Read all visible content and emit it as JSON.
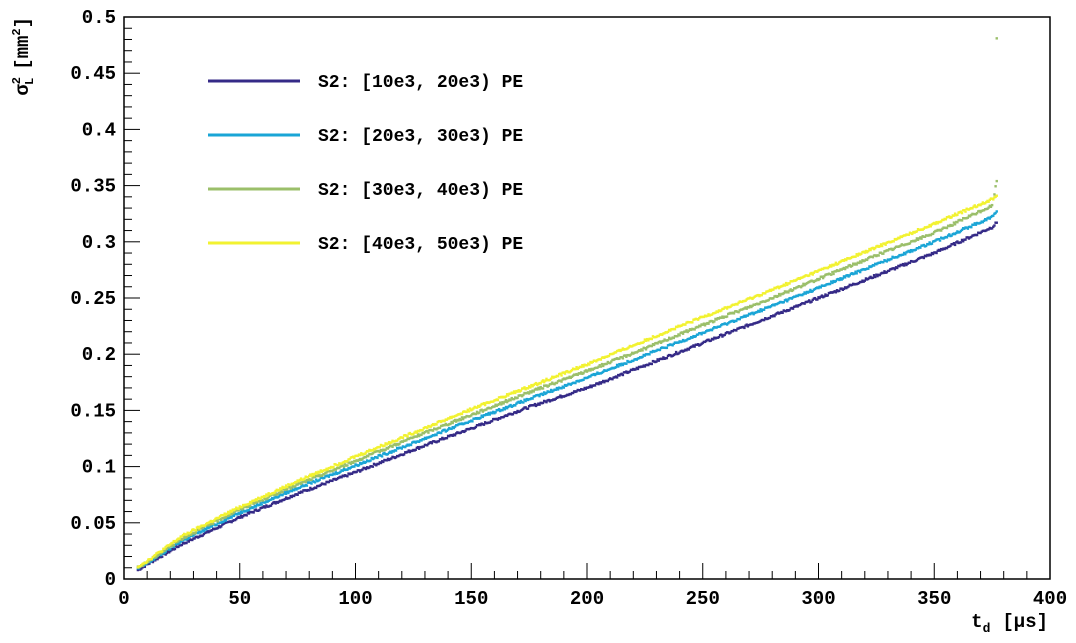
{
  "chart_data": {
    "type": "scatter",
    "xlabel": {
      "main": "t",
      "sub": "d",
      "unit": "[µs]"
    },
    "ylabel": {
      "main": "σ",
      "sup": "2",
      "sub": "L",
      "unit_open": "[mm",
      "unit_sup": "2",
      "unit_close": "]"
    },
    "xlim": [
      0,
      400
    ],
    "ylim": [
      0,
      0.5
    ],
    "x_ticks": [
      0,
      50,
      100,
      150,
      200,
      250,
      300,
      350,
      400
    ],
    "x_tick_labels": [
      "0",
      "50",
      "100",
      "150",
      "200",
      "250",
      "300",
      "350",
      "400"
    ],
    "y_ticks": [
      0,
      0.05,
      0.1,
      0.15,
      0.2,
      0.25,
      0.3,
      0.35,
      0.4,
      0.45,
      0.5
    ],
    "y_tick_labels": [
      "0",
      "0.05",
      "0.1",
      "0.15",
      "0.2",
      "0.25",
      "0.3",
      "0.35",
      "0.4",
      "0.45",
      "0.5"
    ],
    "grid": false,
    "legend_position": "top-left",
    "series": [
      {
        "name": "S2: [10e3, 20e3) PE",
        "color": "#352a87",
        "x": [
          6,
          10,
          25,
          50,
          75,
          100,
          125,
          150,
          175,
          200,
          225,
          250,
          275,
          300,
          325,
          350,
          375,
          377
        ],
        "y": [
          0.008,
          0.013,
          0.031,
          0.055,
          0.076,
          0.095,
          0.115,
          0.134,
          0.153,
          0.17,
          0.19,
          0.21,
          0.23,
          0.25,
          0.27,
          0.29,
          0.313,
          0.317
        ]
      },
      {
        "name": "S2: [20e3, 30e3) PE",
        "color": "#1aa5d6",
        "x": [
          6,
          10,
          25,
          50,
          75,
          100,
          125,
          150,
          175,
          200,
          225,
          250,
          275,
          300,
          325,
          350,
          375,
          377
        ],
        "y": [
          0.009,
          0.014,
          0.034,
          0.059,
          0.081,
          0.101,
          0.121,
          0.141,
          0.16,
          0.179,
          0.199,
          0.219,
          0.239,
          0.259,
          0.28,
          0.3,
          0.322,
          0.327
        ]
      },
      {
        "name": "S2: [30e3, 40e3) PE",
        "color": "#9bbf6a",
        "x": [
          6,
          10,
          25,
          50,
          75,
          100,
          125,
          150,
          175,
          200,
          225,
          250,
          275,
          300,
          325,
          350,
          375,
          377,
          377
        ],
        "y": [
          0.01,
          0.015,
          0.036,
          0.062,
          0.084,
          0.105,
          0.126,
          0.146,
          0.166,
          0.185,
          0.205,
          0.226,
          0.246,
          0.267,
          0.288,
          0.308,
          0.332,
          0.354,
          0.481
        ]
      },
      {
        "name": "S2: [40e3, 50e3) PE",
        "color": "#f2f230",
        "x": [
          6,
          10,
          25,
          50,
          75,
          100,
          125,
          150,
          175,
          200,
          225,
          250,
          275,
          300,
          325,
          350,
          375,
          377
        ],
        "y": [
          0.011,
          0.016,
          0.038,
          0.064,
          0.087,
          0.109,
          0.13,
          0.151,
          0.171,
          0.191,
          0.212,
          0.233,
          0.253,
          0.274,
          0.295,
          0.316,
          0.338,
          0.341
        ]
      }
    ]
  }
}
